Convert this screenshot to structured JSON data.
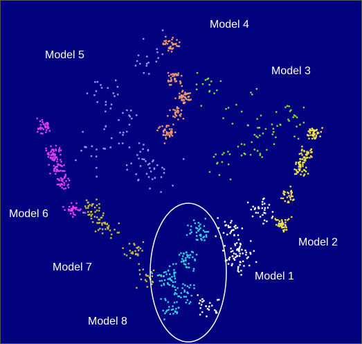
{
  "chart_data": {
    "type": "scatter",
    "title": "",
    "xlabel": "",
    "ylabel": "",
    "grid": false,
    "legend": "none",
    "background_color": "#03037f",
    "series": [
      {
        "name": "Model 1",
        "color": "#ffffff"
      },
      {
        "name": "Model 2",
        "color": "#f2e24a"
      },
      {
        "name": "Model 3",
        "color": "#7fe03a"
      },
      {
        "name": "Model 4",
        "color": "#f29a6e"
      },
      {
        "name": "Model 5",
        "color": "#9a9cf7"
      },
      {
        "name": "Model 6",
        "color": "#e040f0"
      },
      {
        "name": "Model 7",
        "color": "#c8c040"
      },
      {
        "name": "Model 8",
        "color": "#33d6e8"
      }
    ],
    "annotations": {
      "ellipse": "highlight around Model 8 / Model 1 region",
      "ellipse_color": "#ffffff"
    }
  }
}
